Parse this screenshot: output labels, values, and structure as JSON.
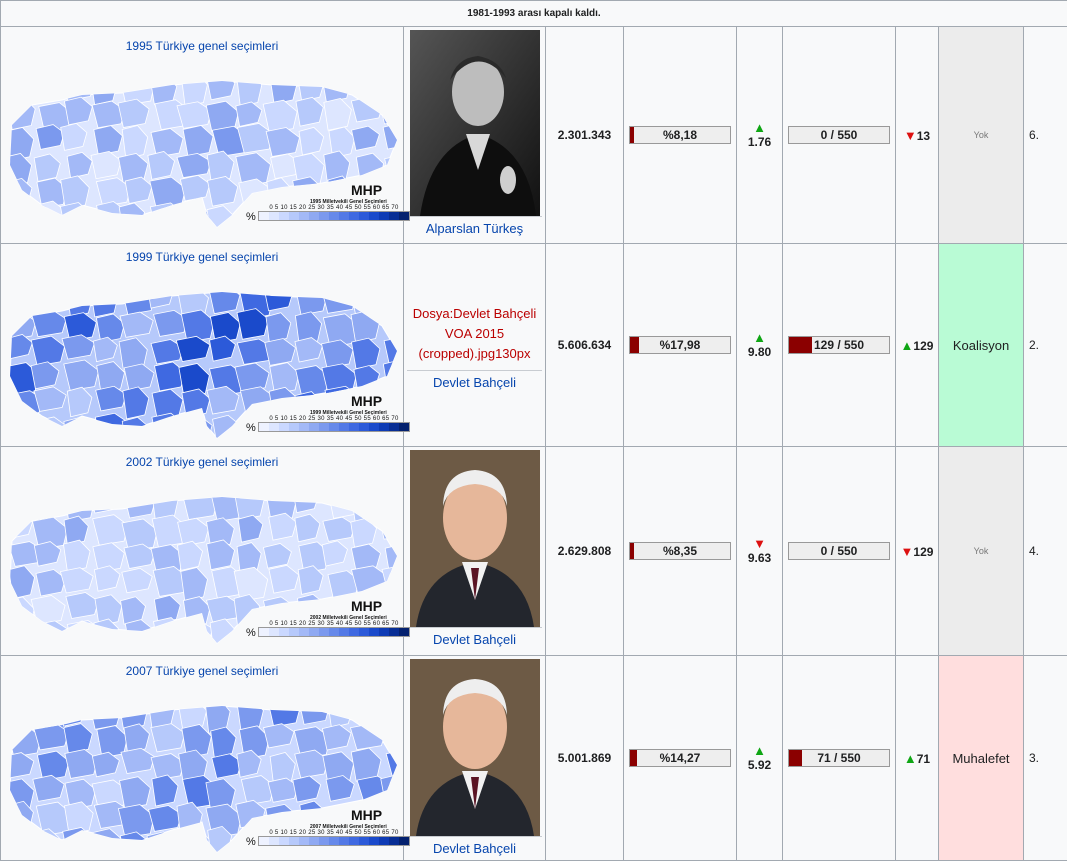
{
  "note": "1981-1993 arası kapalı kaldı.",
  "legend": {
    "scale": "0 5 10 15 20 25 30 35 40 45 50 55 60 65 70",
    "pct": "%",
    "party": "MHP"
  },
  "colors": {
    "fill_bar": "#8b0000",
    "up": "#0fa614",
    "down": "#dd1111",
    "coalition": "#b9fbd5",
    "opposition": "#ffdede",
    "none": "#ececec"
  },
  "rows": [
    {
      "election": "1995 Türkiye genel seçimleri",
      "map_caption": "1995 Milletvekili Genel Seçimleri",
      "leader": "Alparslan Türkeş",
      "votes": "2.301.343",
      "vote_share": "%8,18",
      "vote_share_value": 8.18,
      "change": "1.76",
      "change_dir": "up",
      "seats": "0 / 550",
      "seats_fraction": 0,
      "seat_change": "13",
      "seat_change_dir": "down",
      "status": "Yok",
      "rank": "6."
    },
    {
      "election": "1999 Türkiye genel seçimleri",
      "map_caption": "1999 Milletvekili Genel Seçimleri",
      "missing_image": "Dosya:Devlet Bahçeli VOA 2015 (cropped).jpg130px",
      "leader": "Devlet Bahçeli",
      "votes": "5.606.634",
      "vote_share": "%17,98",
      "vote_share_value": 17.98,
      "change": "9.80",
      "change_dir": "up",
      "seats": "129 / 550",
      "seats_fraction": 0.2345,
      "seat_change": "129",
      "seat_change_dir": "up",
      "status": "Koalisyon",
      "rank": "2."
    },
    {
      "election": "2002 Türkiye genel seçimleri",
      "map_caption": "2002 Milletvekili Genel Seçimleri",
      "leader": "Devlet Bahçeli",
      "votes": "2.629.808",
      "vote_share": "%8,35",
      "vote_share_value": 8.35,
      "change": "9.63",
      "change_dir": "down",
      "seats": "0 / 550",
      "seats_fraction": 0,
      "seat_change": "129",
      "seat_change_dir": "down",
      "status": "Yok",
      "rank": "4."
    },
    {
      "election": "2007 Türkiye genel seçimleri",
      "map_caption": "2007 Milletvekili Genel Seçimleri",
      "leader": "Devlet Bahçeli",
      "votes": "5.001.869",
      "vote_share": "%14,27",
      "vote_share_value": 14.27,
      "change": "5.92",
      "change_dir": "up",
      "seats": "71 / 550",
      "seats_fraction": 0.129,
      "seat_change": "71",
      "seat_change_dir": "up",
      "status": "Muhalefet",
      "rank": "3."
    }
  ]
}
